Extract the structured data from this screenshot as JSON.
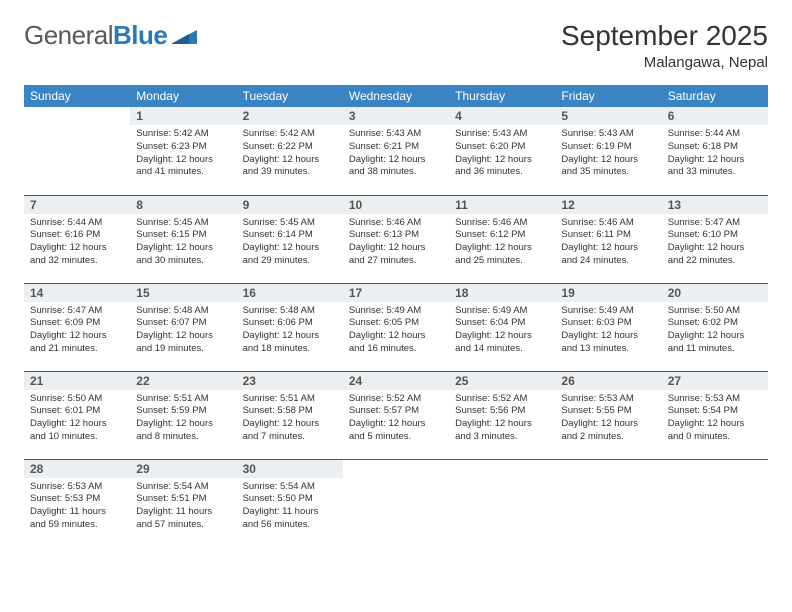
{
  "brand": {
    "name_a": "General",
    "name_b": "Blue"
  },
  "header": {
    "month": "September 2025",
    "location": "Malangawa, Nepal"
  },
  "colors": {
    "header_bg": "#3b84c4",
    "header_text": "#ffffff",
    "daynum_bg": "#eceff1",
    "row_border": "#2a6496",
    "logo_blue": "#2a7ab8",
    "logo_gray": "#5a5a5a",
    "body_text": "#333333"
  },
  "dayNames": [
    "Sunday",
    "Monday",
    "Tuesday",
    "Wednesday",
    "Thursday",
    "Friday",
    "Saturday"
  ],
  "weeks": [
    [
      {
        "n": "",
        "sunrise": "",
        "sunset": "",
        "daylight": ""
      },
      {
        "n": "1",
        "sunrise": "Sunrise: 5:42 AM",
        "sunset": "Sunset: 6:23 PM",
        "daylight": "Daylight: 12 hours and 41 minutes."
      },
      {
        "n": "2",
        "sunrise": "Sunrise: 5:42 AM",
        "sunset": "Sunset: 6:22 PM",
        "daylight": "Daylight: 12 hours and 39 minutes."
      },
      {
        "n": "3",
        "sunrise": "Sunrise: 5:43 AM",
        "sunset": "Sunset: 6:21 PM",
        "daylight": "Daylight: 12 hours and 38 minutes."
      },
      {
        "n": "4",
        "sunrise": "Sunrise: 5:43 AM",
        "sunset": "Sunset: 6:20 PM",
        "daylight": "Daylight: 12 hours and 36 minutes."
      },
      {
        "n": "5",
        "sunrise": "Sunrise: 5:43 AM",
        "sunset": "Sunset: 6:19 PM",
        "daylight": "Daylight: 12 hours and 35 minutes."
      },
      {
        "n": "6",
        "sunrise": "Sunrise: 5:44 AM",
        "sunset": "Sunset: 6:18 PM",
        "daylight": "Daylight: 12 hours and 33 minutes."
      }
    ],
    [
      {
        "n": "7",
        "sunrise": "Sunrise: 5:44 AM",
        "sunset": "Sunset: 6:16 PM",
        "daylight": "Daylight: 12 hours and 32 minutes."
      },
      {
        "n": "8",
        "sunrise": "Sunrise: 5:45 AM",
        "sunset": "Sunset: 6:15 PM",
        "daylight": "Daylight: 12 hours and 30 minutes."
      },
      {
        "n": "9",
        "sunrise": "Sunrise: 5:45 AM",
        "sunset": "Sunset: 6:14 PM",
        "daylight": "Daylight: 12 hours and 29 minutes."
      },
      {
        "n": "10",
        "sunrise": "Sunrise: 5:46 AM",
        "sunset": "Sunset: 6:13 PM",
        "daylight": "Daylight: 12 hours and 27 minutes."
      },
      {
        "n": "11",
        "sunrise": "Sunrise: 5:46 AM",
        "sunset": "Sunset: 6:12 PM",
        "daylight": "Daylight: 12 hours and 25 minutes."
      },
      {
        "n": "12",
        "sunrise": "Sunrise: 5:46 AM",
        "sunset": "Sunset: 6:11 PM",
        "daylight": "Daylight: 12 hours and 24 minutes."
      },
      {
        "n": "13",
        "sunrise": "Sunrise: 5:47 AM",
        "sunset": "Sunset: 6:10 PM",
        "daylight": "Daylight: 12 hours and 22 minutes."
      }
    ],
    [
      {
        "n": "14",
        "sunrise": "Sunrise: 5:47 AM",
        "sunset": "Sunset: 6:09 PM",
        "daylight": "Daylight: 12 hours and 21 minutes."
      },
      {
        "n": "15",
        "sunrise": "Sunrise: 5:48 AM",
        "sunset": "Sunset: 6:07 PM",
        "daylight": "Daylight: 12 hours and 19 minutes."
      },
      {
        "n": "16",
        "sunrise": "Sunrise: 5:48 AM",
        "sunset": "Sunset: 6:06 PM",
        "daylight": "Daylight: 12 hours and 18 minutes."
      },
      {
        "n": "17",
        "sunrise": "Sunrise: 5:49 AM",
        "sunset": "Sunset: 6:05 PM",
        "daylight": "Daylight: 12 hours and 16 minutes."
      },
      {
        "n": "18",
        "sunrise": "Sunrise: 5:49 AM",
        "sunset": "Sunset: 6:04 PM",
        "daylight": "Daylight: 12 hours and 14 minutes."
      },
      {
        "n": "19",
        "sunrise": "Sunrise: 5:49 AM",
        "sunset": "Sunset: 6:03 PM",
        "daylight": "Daylight: 12 hours and 13 minutes."
      },
      {
        "n": "20",
        "sunrise": "Sunrise: 5:50 AM",
        "sunset": "Sunset: 6:02 PM",
        "daylight": "Daylight: 12 hours and 11 minutes."
      }
    ],
    [
      {
        "n": "21",
        "sunrise": "Sunrise: 5:50 AM",
        "sunset": "Sunset: 6:01 PM",
        "daylight": "Daylight: 12 hours and 10 minutes."
      },
      {
        "n": "22",
        "sunrise": "Sunrise: 5:51 AM",
        "sunset": "Sunset: 5:59 PM",
        "daylight": "Daylight: 12 hours and 8 minutes."
      },
      {
        "n": "23",
        "sunrise": "Sunrise: 5:51 AM",
        "sunset": "Sunset: 5:58 PM",
        "daylight": "Daylight: 12 hours and 7 minutes."
      },
      {
        "n": "24",
        "sunrise": "Sunrise: 5:52 AM",
        "sunset": "Sunset: 5:57 PM",
        "daylight": "Daylight: 12 hours and 5 minutes."
      },
      {
        "n": "25",
        "sunrise": "Sunrise: 5:52 AM",
        "sunset": "Sunset: 5:56 PM",
        "daylight": "Daylight: 12 hours and 3 minutes."
      },
      {
        "n": "26",
        "sunrise": "Sunrise: 5:53 AM",
        "sunset": "Sunset: 5:55 PM",
        "daylight": "Daylight: 12 hours and 2 minutes."
      },
      {
        "n": "27",
        "sunrise": "Sunrise: 5:53 AM",
        "sunset": "Sunset: 5:54 PM",
        "daylight": "Daylight: 12 hours and 0 minutes."
      }
    ],
    [
      {
        "n": "28",
        "sunrise": "Sunrise: 5:53 AM",
        "sunset": "Sunset: 5:53 PM",
        "daylight": "Daylight: 11 hours and 59 minutes."
      },
      {
        "n": "29",
        "sunrise": "Sunrise: 5:54 AM",
        "sunset": "Sunset: 5:51 PM",
        "daylight": "Daylight: 11 hours and 57 minutes."
      },
      {
        "n": "30",
        "sunrise": "Sunrise: 5:54 AM",
        "sunset": "Sunset: 5:50 PM",
        "daylight": "Daylight: 11 hours and 56 minutes."
      },
      {
        "n": "",
        "sunrise": "",
        "sunset": "",
        "daylight": ""
      },
      {
        "n": "",
        "sunrise": "",
        "sunset": "",
        "daylight": ""
      },
      {
        "n": "",
        "sunrise": "",
        "sunset": "",
        "daylight": ""
      },
      {
        "n": "",
        "sunrise": "",
        "sunset": "",
        "daylight": ""
      }
    ]
  ]
}
